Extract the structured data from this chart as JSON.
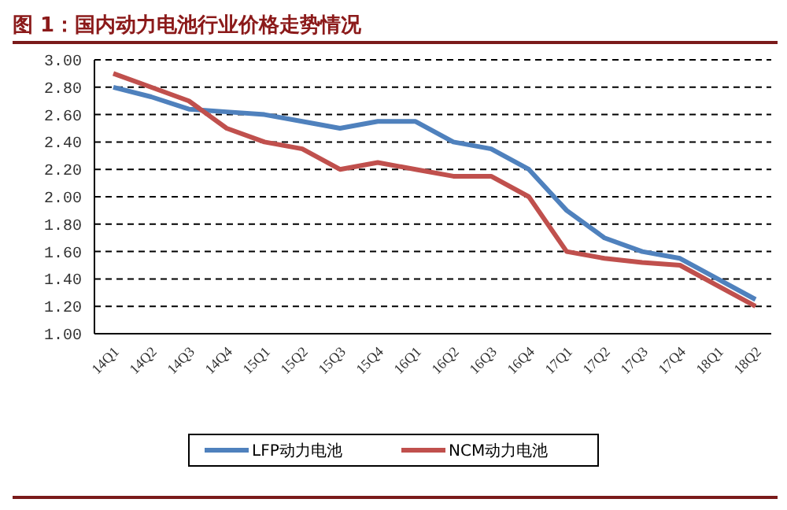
{
  "chart_data": {
    "type": "line",
    "title": "图 1：国内动力电池行业价格走势情况",
    "categories": [
      "14Q1",
      "14Q2",
      "14Q3",
      "14Q4",
      "15Q1",
      "15Q2",
      "15Q3",
      "15Q4",
      "16Q1",
      "16Q2",
      "16Q3",
      "16Q4",
      "17Q1",
      "17Q2",
      "17Q3",
      "17Q4",
      "18Q1",
      "18Q2"
    ],
    "series": [
      {
        "name": "LFP动力电池",
        "color": "#4f81bd",
        "values": [
          2.8,
          2.73,
          2.64,
          2.62,
          2.6,
          2.55,
          2.5,
          2.55,
          2.55,
          2.4,
          2.35,
          2.2,
          1.9,
          1.7,
          1.6,
          1.55,
          1.4,
          1.25
        ]
      },
      {
        "name": "NCM动力电池",
        "color": "#c0504d",
        "values": [
          2.9,
          2.8,
          2.7,
          2.5,
          2.4,
          2.35,
          2.2,
          2.25,
          2.2,
          2.15,
          2.15,
          2.0,
          1.6,
          1.55,
          1.52,
          1.5,
          1.35,
          1.2
        ]
      }
    ],
    "ylim": [
      1,
      3
    ],
    "yticks": [
      {
        "value": 1,
        "label": "1.00"
      },
      {
        "value": 1.2,
        "label": "1.20"
      },
      {
        "value": 1.4,
        "label": "1.40"
      },
      {
        "value": 1.6,
        "label": "1.60"
      },
      {
        "value": 1.8,
        "label": "1.80"
      },
      {
        "value": 2,
        "label": "2.00"
      },
      {
        "value": 2.2,
        "label": "2.20"
      },
      {
        "value": 2.4,
        "label": "2.40"
      },
      {
        "value": 2.6,
        "label": "2.60"
      },
      {
        "value": 2.8,
        "label": "2.80"
      },
      {
        "value": 3,
        "label": "3.00"
      }
    ],
    "grid": "y",
    "legend": "bottom",
    "marker": "none",
    "line_style": "solid"
  }
}
